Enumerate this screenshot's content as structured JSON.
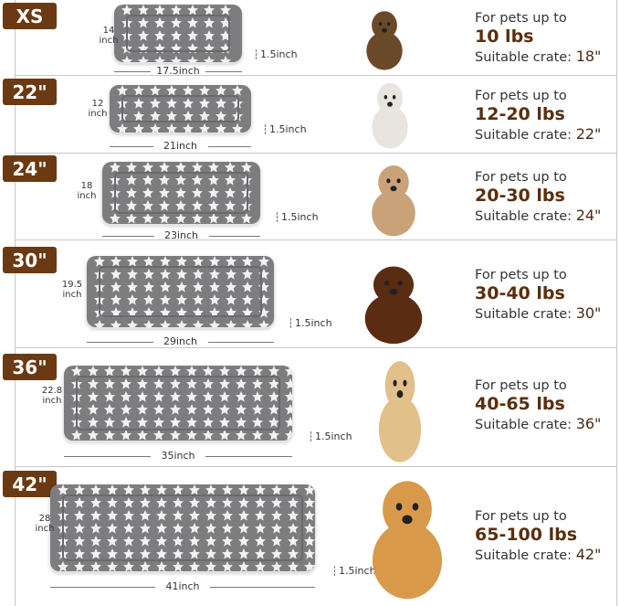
{
  "colors": {
    "badge": "#6b3a12",
    "weight": "#5a2e0e",
    "mat": "#7d7d7f"
  },
  "rows": [
    {
      "size": "XS",
      "length": "14",
      "length_unit": "inch",
      "width": "17.5inch",
      "thickness": "1.5inch",
      "pet_icon": "yorkie-puppy",
      "line1": "For pets up to",
      "weight": "10 lbs",
      "crate_label": "Suitable crate:",
      "crate_value": "18\""
    },
    {
      "size": "22\"",
      "length": "12",
      "length_unit": "inch",
      "width": "21inch",
      "thickness": "1.5inch",
      "pet_icon": "ragdoll-cat",
      "line1": "For pets up to",
      "weight": "12-20 lbs",
      "crate_label": "Suitable crate:",
      "crate_value": "22\""
    },
    {
      "size": "24\"",
      "length": "18",
      "length_unit": "inch",
      "width": "23inch",
      "thickness": "1.5inch",
      "pet_icon": "french-bulldog",
      "line1": "For pets up to",
      "weight": "20-30 lbs",
      "crate_label": "Suitable crate:",
      "crate_value": "24\""
    },
    {
      "size": "30\"",
      "length": "19.5",
      "length_unit": "inch",
      "width": "29inch",
      "thickness": "1.5inch",
      "pet_icon": "dachshund",
      "line1": "For pets up to",
      "weight": "30-40 lbs",
      "crate_label": "Suitable crate:",
      "crate_value": "30\""
    },
    {
      "size": "36\"",
      "length": "22.8",
      "length_unit": "inch",
      "width": "35inch",
      "thickness": "1.5inch",
      "pet_icon": "golden-retriever-standing",
      "line1": "For pets up to",
      "weight": "40-65 lbs",
      "crate_label": "Suitable crate:",
      "crate_value": "36\""
    },
    {
      "size": "42\"",
      "length": "28",
      "length_unit": "inch",
      "width": "41inch",
      "thickness": "1.5inch",
      "pet_icon": "golden-retriever-lying",
      "line1": "For pets up to",
      "weight": "65-100 lbs",
      "crate_label": "Suitable crate:",
      "crate_value": "42\""
    }
  ]
}
